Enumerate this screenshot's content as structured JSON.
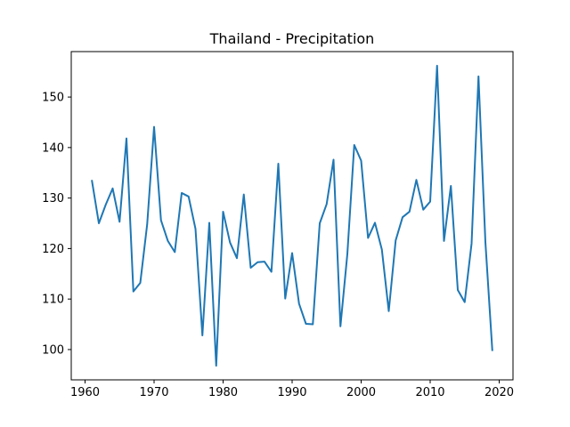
{
  "chart_data": {
    "type": "line",
    "title": "Thailand - Precipitation",
    "xlabel": "",
    "ylabel": "",
    "xlim": [
      1958,
      2022
    ],
    "ylim": [
      94,
      159
    ],
    "xticks": [
      1960,
      1970,
      1980,
      1990,
      2000,
      2010,
      2020
    ],
    "yticks": [
      100,
      110,
      120,
      130,
      140,
      150
    ],
    "grid": false,
    "line_color": "#1f77b4",
    "series": [
      {
        "x": [
          1961,
          1962,
          1963,
          1964,
          1965,
          1966,
          1967,
          1968,
          1969,
          1970,
          1971,
          1972,
          1973,
          1974,
          1975,
          1976,
          1977,
          1978,
          1979,
          1980,
          1981,
          1982,
          1983,
          1984,
          1985,
          1986,
          1987,
          1988,
          1989,
          1990,
          1991,
          1992,
          1993,
          1994,
          1995,
          1996,
          1997,
          1998,
          1999,
          2000,
          2001,
          2002,
          2003,
          2004,
          2005,
          2006,
          2007,
          2008,
          2009,
          2010,
          2011,
          2012,
          2013,
          2014,
          2015,
          2016,
          2017,
          2018,
          2019
        ],
        "y": [
          133.4,
          125.0,
          128.7,
          131.9,
          125.3,
          141.8,
          111.5,
          113.2,
          124.8,
          144.1,
          125.6,
          121.5,
          119.3,
          131.0,
          130.3,
          123.9,
          102.8,
          125.1,
          96.8,
          127.3,
          121.2,
          118.1,
          130.7,
          116.2,
          117.3,
          117.4,
          115.4,
          136.8,
          110.1,
          119.1,
          109.1,
          105.1,
          105.0,
          125.0,
          128.8,
          137.6,
          104.6,
          118.9,
          140.5,
          137.4,
          122.1,
          125.1,
          119.8,
          107.6,
          121.6,
          126.2,
          127.3,
          133.6,
          127.7,
          129.3,
          156.2,
          121.5,
          132.4,
          111.8,
          109.4,
          121.0,
          154.1,
          121.3,
          99.9
        ]
      }
    ]
  }
}
